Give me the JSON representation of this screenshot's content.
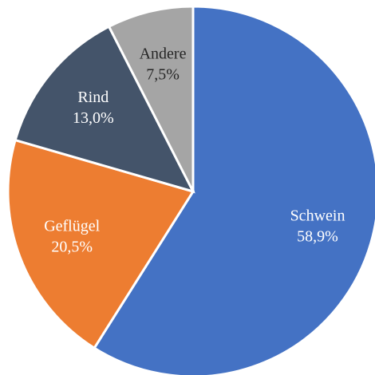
{
  "chart_data": {
    "type": "pie",
    "categories": [
      "Schwein",
      "Geflügel",
      "Rind",
      "Andere"
    ],
    "values": [
      58.9,
      20.5,
      13.0,
      7.5
    ],
    "value_labels": [
      "58,9%",
      "20,5%",
      "13,0%",
      "7,5%"
    ],
    "colors": [
      "#4472c4",
      "#ed7d31",
      "#44546a",
      "#a5a5a5"
    ]
  }
}
